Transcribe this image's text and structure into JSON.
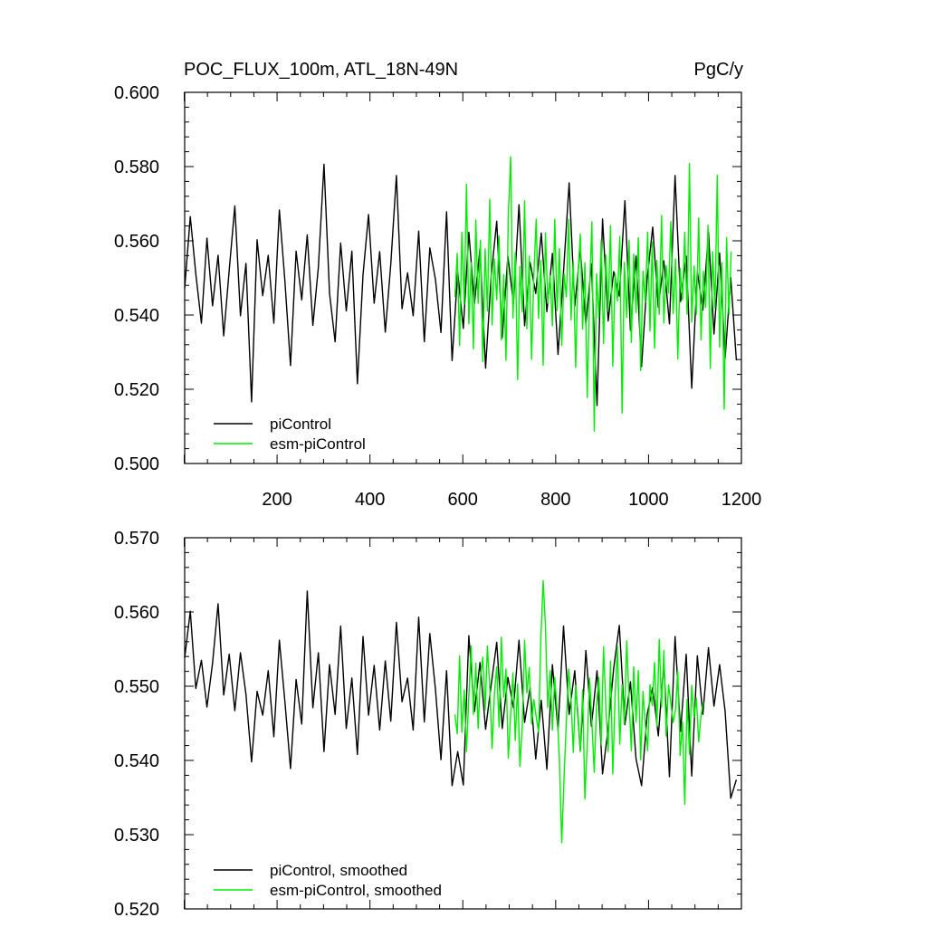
{
  "chart_data": [
    {
      "type": "line",
      "title": "POC_FLUX_100m, ATL_18N-49N",
      "units": "PgC/y",
      "xlabel": "",
      "ylabel": "",
      "xlim": [
        1,
        1200
      ],
      "ylim": [
        0.5,
        0.6
      ],
      "x_ticks": [
        200,
        400,
        600,
        800,
        1000,
        1200
      ],
      "x_tick_labels": [
        "200",
        "400",
        "600",
        "800",
        "1000",
        "1200"
      ],
      "y_ticks": [
        0.5,
        0.52,
        0.54,
        0.56,
        0.58,
        0.6
      ],
      "y_tick_labels": [
        "0.500",
        "0.520",
        "0.540",
        "0.560",
        "0.580",
        "0.600"
      ],
      "legend_position": "bottom-left",
      "series": [
        {
          "name": "piControl",
          "color": "#000000",
          "start_year": 1,
          "step_years": 12,
          "values": [
            0.5472,
            0.5665,
            0.5511,
            0.5378,
            0.5607,
            0.5425,
            0.5561,
            0.5344,
            0.5521,
            0.5694,
            0.5398,
            0.5539,
            0.5166,
            0.5603,
            0.5452,
            0.5561,
            0.5378,
            0.5683,
            0.5489,
            0.5264,
            0.5572,
            0.5441,
            0.5616,
            0.5372,
            0.5529,
            0.5806,
            0.5459,
            0.5328,
            0.5594,
            0.5411,
            0.5572,
            0.5215,
            0.5508,
            0.5671,
            0.5432,
            0.5571,
            0.5354,
            0.5538,
            0.5776,
            0.5417,
            0.5514,
            0.5398,
            0.5626,
            0.5328,
            0.5581,
            0.5496,
            0.5353,
            0.5678,
            0.5277,
            0.5517,
            0.5364,
            0.5623,
            0.5431,
            0.5579,
            0.5257,
            0.5503,
            0.5653,
            0.5339,
            0.5559,
            0.5431,
            0.5697,
            0.5371,
            0.5542,
            0.5458,
            0.5621,
            0.5409,
            0.5566,
            0.5294,
            0.5517,
            0.5756,
            0.5424,
            0.5579,
            0.5374,
            0.5538,
            0.5156,
            0.5659,
            0.5384,
            0.5517,
            0.5451,
            0.5708,
            0.5359,
            0.5559,
            0.5261,
            0.5498,
            0.5637,
            0.5421,
            0.5546,
            0.5376,
            0.5776,
            0.5436,
            0.5559,
            0.5203,
            0.5517,
            0.5413,
            0.5623,
            0.5349,
            0.5567,
            0.5283,
            0.5501,
            0.5278
          ]
        },
        {
          "name": "esm-piControl",
          "color": "#00ee00",
          "start_year": 583,
          "step_years": 5,
          "values": [
            0.5449,
            0.5566,
            0.5318,
            0.5623,
            0.5429,
            0.5752,
            0.5376,
            0.5541,
            0.5309,
            0.5656,
            0.5432,
            0.5601,
            0.5275,
            0.5578,
            0.5411,
            0.5712,
            0.5374,
            0.5551,
            0.5441,
            0.5613,
            0.5333,
            0.5509,
            0.5278,
            0.5669,
            0.5826,
            0.5392,
            0.5568,
            0.5226,
            0.5531,
            0.5409,
            0.5708,
            0.5363,
            0.5559,
            0.5281,
            0.5509,
            0.5658,
            0.5391,
            0.5547,
            0.5265,
            0.5621,
            0.5432,
            0.5506,
            0.5371,
            0.5658,
            0.5413,
            0.5579,
            0.5318,
            0.5511,
            0.5449,
            0.5657,
            0.5387,
            0.5544,
            0.5259,
            0.5502,
            0.5618,
            0.5362,
            0.5541,
            0.5178,
            0.5466,
            0.5651,
            0.5087,
            0.5511,
            0.5393,
            0.5601,
            0.5323,
            0.5561,
            0.5411,
            0.5641,
            0.5262,
            0.5512,
            0.5438,
            0.5612,
            0.5136,
            0.5542,
            0.5394,
            0.5601,
            0.5326,
            0.5564,
            0.5406,
            0.5608,
            0.5251,
            0.5518,
            0.5434,
            0.5623,
            0.5357,
            0.5596,
            0.5311,
            0.5547,
            0.5402,
            0.5668,
            0.5378,
            0.5533,
            0.5459,
            0.5652,
            0.5404,
            0.5551,
            0.5282,
            0.5526,
            0.5441,
            0.5623,
            0.5402,
            0.5808,
            0.5381,
            0.5532,
            0.5402,
            0.5661,
            0.5333,
            0.5518,
            0.5421,
            0.5642,
            0.5256,
            0.5571,
            0.5419,
            0.5776,
            0.5314,
            0.5541,
            0.5146,
            0.5609,
            0.5401,
            0.5571
          ]
        }
      ]
    },
    {
      "type": "line",
      "title": "",
      "units": "",
      "xlabel": "",
      "ylabel": "",
      "xlim": [
        1,
        1200
      ],
      "ylim": [
        0.52,
        0.57
      ],
      "x_ticks": [
        200,
        400,
        600,
        800,
        1000,
        1200
      ],
      "x_tick_labels": [],
      "y_ticks": [
        0.52,
        0.53,
        0.54,
        0.55,
        0.56,
        0.57
      ],
      "y_tick_labels": [
        "0.520",
        "0.530",
        "0.540",
        "0.550",
        "0.560",
        "0.570"
      ],
      "legend_position": "bottom-left",
      "series": [
        {
          "name": "piControl, smoothed",
          "color": "#000000",
          "start_year": 1,
          "step_years": 12,
          "values": [
            0.5538,
            0.5601,
            0.5497,
            0.5535,
            0.5472,
            0.5531,
            0.5611,
            0.5488,
            0.5543,
            0.5467,
            0.5545,
            0.5489,
            0.5398,
            0.5493,
            0.5461,
            0.5521,
            0.5432,
            0.5562,
            0.5478,
            0.5389,
            0.5509,
            0.5449,
            0.5628,
            0.5471,
            0.5545,
            0.5412,
            0.5529,
            0.5462,
            0.5581,
            0.5443,
            0.5511,
            0.5408,
            0.5567,
            0.5461,
            0.5528,
            0.5441,
            0.5534,
            0.5453,
            0.5586,
            0.5479,
            0.5511,
            0.5441,
            0.5593,
            0.5452,
            0.5571,
            0.5496,
            0.5401,
            0.5521,
            0.5366,
            0.5412,
            0.5367,
            0.5568,
            0.5466,
            0.5532,
            0.5442,
            0.5501,
            0.5559,
            0.5443,
            0.5512,
            0.5471,
            0.5562,
            0.5451,
            0.5498,
            0.5402,
            0.5481,
            0.5388,
            0.5529,
            0.5441,
            0.5581,
            0.5462,
            0.5521,
            0.5413,
            0.5548,
            0.5446,
            0.5521,
            0.5382,
            0.5443,
            0.5524,
            0.5582,
            0.5448,
            0.5506,
            0.5402,
            0.5366,
            0.5462,
            0.5498,
            0.5433,
            0.5531,
            0.5378,
            0.5567,
            0.5439,
            0.5543,
            0.5379,
            0.5541,
            0.5462,
            0.5552,
            0.5473,
            0.5529,
            0.5466,
            0.5349,
            0.5374
          ]
        },
        {
          "name": "esm-piControl, smoothed",
          "color": "#00ee00",
          "start_year": 583,
          "step_years": 5,
          "values": [
            0.5462,
            0.5436,
            0.5541,
            0.5438,
            0.5495,
            0.5412,
            0.5487,
            0.5554,
            0.5462,
            0.5531,
            0.5443,
            0.5512,
            0.5539,
            0.5468,
            0.5554,
            0.5498,
            0.5416,
            0.5489,
            0.5526,
            0.5445,
            0.5566,
            0.5485,
            0.5523,
            0.5403,
            0.5461,
            0.5518,
            0.5427,
            0.5503,
            0.5392,
            0.5446,
            0.5562,
            0.5491,
            0.5525,
            0.5449,
            0.5482,
            0.5459,
            0.5438,
            0.5562,
            0.5642,
            0.5582,
            0.5471,
            0.5521,
            0.5441,
            0.5512,
            0.5467,
            0.5402,
            0.5289,
            0.5378,
            0.5451,
            0.5523,
            0.5482,
            0.5411,
            0.5501,
            0.5463,
            0.5412,
            0.5495,
            0.5348,
            0.5422,
            0.5511,
            0.5452,
            0.5384,
            0.5474,
            0.5512,
            0.5421,
            0.5553,
            0.5473,
            0.5412,
            0.5534,
            0.5382,
            0.5487,
            0.5553,
            0.5422,
            0.5502,
            0.5449,
            0.5561,
            0.5481,
            0.5413,
            0.5526,
            0.5452,
            0.5521,
            0.5401,
            0.5493,
            0.5449,
            0.5413,
            0.5502,
            0.5474,
            0.5532,
            0.5446,
            0.5563,
            0.5472,
            0.5548,
            0.5433,
            0.5502,
            0.5478,
            0.5451,
            0.5468,
            0.5521,
            0.5407,
            0.5452,
            0.5341,
            0.5482,
            0.5408,
            0.5501,
            0.5458,
            0.5484,
            0.5425,
            0.5461,
            0.5478
          ]
        }
      ]
    }
  ]
}
